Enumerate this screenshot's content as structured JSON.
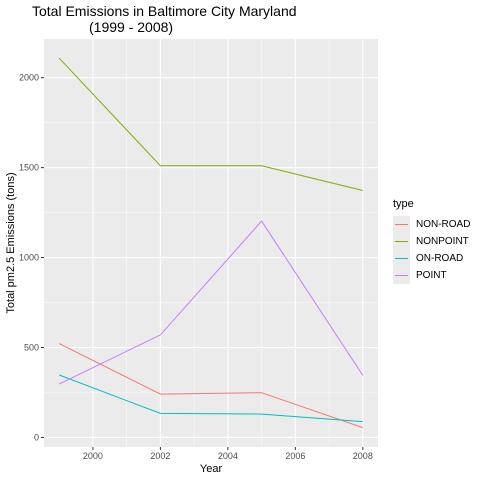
{
  "title": "Total Emissions in Baltimore City Maryland",
  "subtitle": "(1999 - 2008)",
  "chart_data": {
    "type": "line",
    "title": "Total Emissions in Baltimore City Maryland (1999 - 2008)",
    "xlabel": "Year",
    "ylabel": "Total pm2.5 Emissions (tons)",
    "x": [
      1999,
      2002,
      2005,
      2008
    ],
    "xlim": [
      1998.55,
      2008.45
    ],
    "ylim": [
      -53,
      2215
    ],
    "xticks": [
      2000,
      2002,
      2004,
      2006,
      2008
    ],
    "yticks": [
      0,
      500,
      1000,
      1500,
      2000
    ],
    "grid": true,
    "legend_position": "right",
    "legend_title": "type",
    "series": [
      {
        "name": "NON-ROAD",
        "color": "#F8766D",
        "values": [
          522,
          241,
          249,
          55
        ]
      },
      {
        "name": "NONPOINT",
        "color": "#7CAE00",
        "values": [
          2108,
          1510,
          1510,
          1373
        ]
      },
      {
        "name": "ON-ROAD",
        "color": "#00BFC4",
        "values": [
          347,
          134,
          130,
          88
        ]
      },
      {
        "name": "POINT",
        "color": "#C77CFF",
        "values": [
          297,
          570,
          1203,
          345
        ]
      }
    ]
  }
}
